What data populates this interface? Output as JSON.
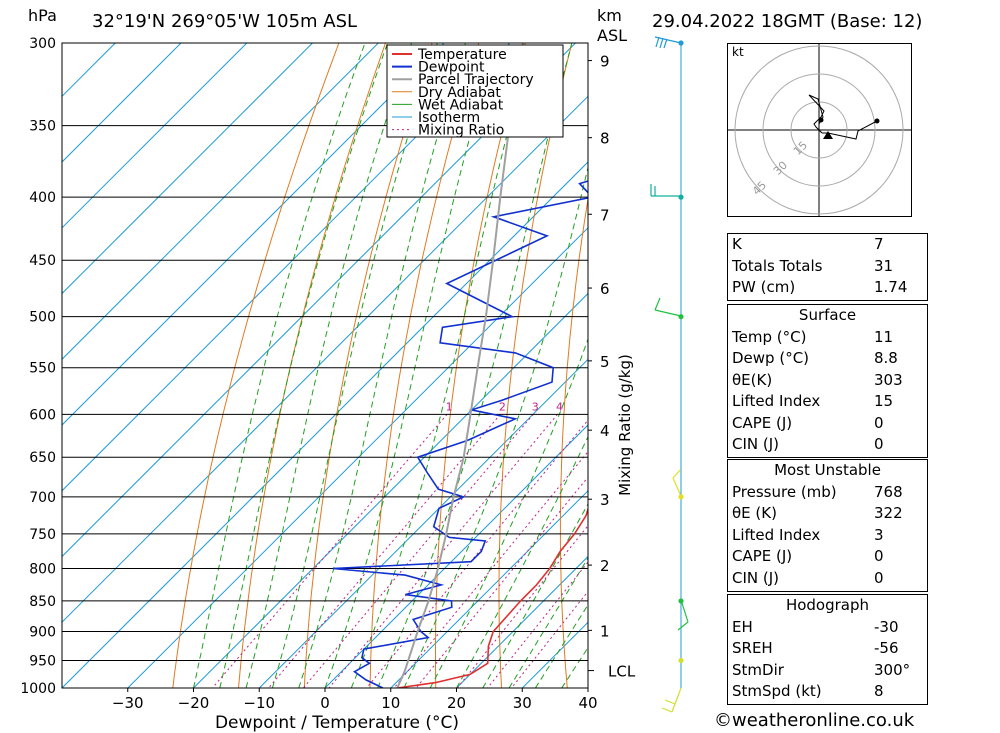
{
  "header": {
    "pressure_unit": "hPa",
    "location": "32°19'N  269°05'W  105m  ASL",
    "height_unit": "km",
    "height_unit_sub": "ASL",
    "datetime": "29.04.2022  18GMT  (Base: 12)"
  },
  "credit": "©weatheronline.co.uk",
  "legend": [
    "Temperature",
    "Dewpoint",
    "Parcel Trajectory",
    "Dry Adiabat",
    "Wet Adiabat",
    "Isotherm",
    "Mixing Ratio"
  ],
  "colors": {
    "temperature": "#e03030",
    "dewpoint": "#1030d0",
    "parcel": "#a0a0a0",
    "dry_adiabat": "#e07a20",
    "wet_adiabat": "#20a020",
    "isotherm": "#1e9bd8",
    "mixing_ratio": "#c0208a"
  },
  "chart_data": {
    "type": "line",
    "title": "32°19'N  269°05'W  105m  ASL",
    "xlabel": "Dewpoint / Temperature (°C)",
    "ylabel": "hPa",
    "xlim": [
      -40,
      40
    ],
    "ylim": [
      1000,
      300
    ],
    "x_ticks": [
      -30,
      -20,
      -10,
      0,
      10,
      20,
      30,
      40
    ],
    "pressure_levels": [
      300,
      350,
      400,
      450,
      500,
      550,
      600,
      650,
      700,
      750,
      800,
      850,
      900,
      950,
      1000
    ],
    "km_ticks": [
      {
        "label": "1",
        "p": 898
      },
      {
        "label": "2",
        "p": 795
      },
      {
        "label": "3",
        "p": 703
      },
      {
        "label": "4",
        "p": 618
      },
      {
        "label": "5",
        "p": 543
      },
      {
        "label": "6",
        "p": 474
      },
      {
        "label": "7",
        "p": 413
      },
      {
        "label": "8",
        "p": 358
      },
      {
        "label": "9",
        "p": 310
      }
    ],
    "lcl": {
      "label": "LCL",
      "p": 968
    },
    "mixing_ratio_label": "Mixing Ratio (g/kg)",
    "mixing_ratio_labels": [
      "1",
      "2",
      "3",
      "4",
      "6",
      "8",
      "10",
      "15",
      "20",
      "25"
    ],
    "series": [
      {
        "name": "Temperature",
        "points": [
          [
            1000,
            11
          ],
          [
            990,
            16
          ],
          [
            975,
            20
          ],
          [
            955,
            21
          ],
          [
            925,
            18.5
          ],
          [
            900,
            17
          ],
          [
            850,
            16.5
          ],
          [
            825,
            16.5
          ],
          [
            800,
            16
          ],
          [
            775,
            15
          ],
          [
            750,
            14.5
          ],
          [
            725,
            13.5
          ],
          [
            700,
            11.5
          ],
          [
            650,
            7
          ],
          [
            600,
            1.5
          ],
          [
            570,
            -3.5
          ],
          [
            550,
            -7
          ],
          [
            535,
            -8.5
          ],
          [
            525,
            -8
          ],
          [
            500,
            -9.5
          ],
          [
            450,
            -13.5
          ],
          [
            400,
            -19.5
          ],
          [
            350,
            -27.5
          ],
          [
            325,
            -33
          ],
          [
            300,
            -37
          ]
        ]
      },
      {
        "name": "Dewpoint",
        "points": [
          [
            1000,
            8.8
          ],
          [
            985,
            5
          ],
          [
            970,
            2
          ],
          [
            955,
            3
          ],
          [
            945,
            1
          ],
          [
            930,
            0
          ],
          [
            910,
            8
          ],
          [
            900,
            6
          ],
          [
            880,
            3
          ],
          [
            860,
            7
          ],
          [
            850,
            6
          ],
          [
            840,
            -2
          ],
          [
            825,
            2
          ],
          [
            810,
            -5
          ],
          [
            800,
            -17
          ],
          [
            790,
            3
          ],
          [
            775,
            3
          ],
          [
            760,
            2
          ],
          [
            755,
            -4
          ],
          [
            740,
            -8
          ],
          [
            715,
            -10
          ],
          [
            700,
            -8
          ],
          [
            690,
            -13
          ],
          [
            670,
            -17
          ],
          [
            650,
            -21
          ],
          [
            630,
            -16
          ],
          [
            605,
            -12
          ],
          [
            595,
            -20
          ],
          [
            585,
            -17
          ],
          [
            565,
            -12
          ],
          [
            550,
            -14
          ],
          [
            535,
            -22
          ],
          [
            525,
            -35
          ],
          [
            510,
            -37
          ],
          [
            500,
            -28
          ],
          [
            470,
            -43
          ],
          [
            430,
            -35
          ],
          [
            415,
            -46
          ],
          [
            400,
            -34
          ],
          [
            390,
            -38
          ],
          [
            380,
            -33
          ],
          [
            372,
            -40
          ],
          [
            365,
            -36
          ],
          [
            358,
            -28
          ],
          [
            352,
            -36
          ],
          [
            345,
            -25
          ],
          [
            338,
            -30
          ],
          [
            330,
            -23
          ],
          [
            320,
            -28
          ],
          [
            310,
            -25
          ],
          [
            300,
            -27
          ]
        ]
      },
      {
        "name": "Parcel Trajectory",
        "points": [
          [
            1000,
            11
          ],
          [
            968,
            9.5
          ],
          [
            900,
            5.5
          ],
          [
            850,
            2.5
          ],
          [
            800,
            -1
          ],
          [
            750,
            -5
          ],
          [
            700,
            -9.5
          ],
          [
            650,
            -14
          ],
          [
            600,
            -19.5
          ],
          [
            550,
            -25.5
          ],
          [
            500,
            -32
          ],
          [
            450,
            -39.5
          ],
          [
            400,
            -48
          ],
          [
            350,
            -57.5
          ],
          [
            300,
            -68
          ]
        ]
      }
    ],
    "wind_barbs_colors": [
      "#1e9bd8",
      "#10b0a0",
      "#20c040",
      "#e0e020",
      "#d0e030"
    ]
  },
  "hodograph": {
    "unit": "kt",
    "rings": [
      "15",
      "30",
      "45"
    ]
  },
  "indices": [
    {
      "key": "K",
      "value": "7"
    },
    {
      "key": "Totals Totals",
      "value": "31"
    },
    {
      "key": "PW (cm)",
      "value": "1.74"
    }
  ],
  "surface": {
    "title": "Surface",
    "rows": [
      {
        "key": "Temp (°C)",
        "value": "11"
      },
      {
        "key": "Dewp (°C)",
        "value": "8.8"
      },
      {
        "key": "θE(K)",
        "value": "303"
      },
      {
        "key": "Lifted Index",
        "value": "15"
      },
      {
        "key": "CAPE (J)",
        "value": "0"
      },
      {
        "key": "CIN (J)",
        "value": "0"
      }
    ]
  },
  "most_unstable": {
    "title": "Most Unstable",
    "rows": [
      {
        "key": "Pressure (mb)",
        "value": "768"
      },
      {
        "key": "θE (K)",
        "value": "322"
      },
      {
        "key": "Lifted Index",
        "value": "3"
      },
      {
        "key": "CAPE (J)",
        "value": "0"
      },
      {
        "key": "CIN (J)",
        "value": "0"
      }
    ]
  },
  "hodograph_stats": {
    "title": "Hodograph",
    "rows": [
      {
        "key": "EH",
        "value": "-30"
      },
      {
        "key": "SREH",
        "value": "-56"
      },
      {
        "key": "StmDir",
        "value": "300°"
      },
      {
        "key": "StmSpd (kt)",
        "value": "8"
      }
    ]
  }
}
